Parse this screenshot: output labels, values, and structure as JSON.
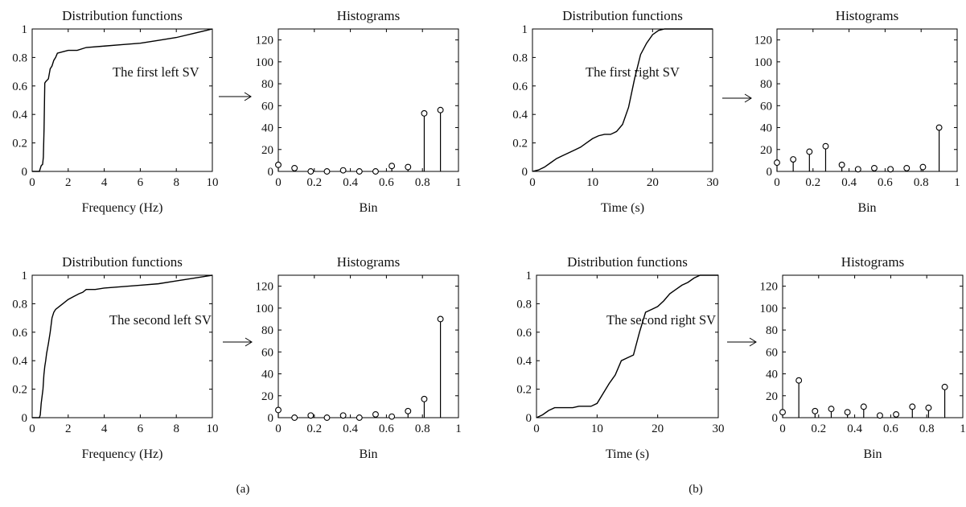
{
  "panel_labels": [
    "(a)",
    "(b)"
  ],
  "chart_data": [
    {
      "type": "line",
      "title": "Distribution functions",
      "xlabel": "Frequency (Hz)",
      "annotation": "The first left SV",
      "xlim": [
        0,
        10
      ],
      "ylim": [
        0,
        1
      ],
      "xticks": [
        "0",
        "2",
        "4",
        "6",
        "8",
        "10"
      ],
      "yticks": [
        "0",
        "0.2",
        "0.4",
        "0.6",
        "0.8",
        "1"
      ],
      "grid": false,
      "series": [
        {
          "x": [
            0,
            0.4,
            0.45,
            0.5,
            0.58,
            0.62,
            0.66,
            0.7,
            0.75,
            0.9,
            1.0,
            1.1,
            1.2,
            1.3,
            1.4,
            1.7,
            2.0,
            2.5,
            3.0,
            4.0,
            5.0,
            6.0,
            7.0,
            8.0,
            9.0,
            10.0
          ],
          "y": [
            0,
            0,
            0.02,
            0.04,
            0.05,
            0.1,
            0.3,
            0.62,
            0.63,
            0.65,
            0.72,
            0.74,
            0.78,
            0.8,
            0.83,
            0.84,
            0.85,
            0.85,
            0.87,
            0.88,
            0.89,
            0.9,
            0.92,
            0.94,
            0.97,
            1.0
          ]
        }
      ]
    },
    {
      "type": "stem",
      "title": "Histograms",
      "xlabel": "Bin",
      "xlim": [
        0,
        1
      ],
      "ylim": [
        0,
        130
      ],
      "xticks": [
        "0",
        "0.2",
        "0.4",
        "0.6",
        "0.8",
        "1"
      ],
      "yticks": [
        "0",
        "20",
        "40",
        "60",
        "80",
        "100",
        "120"
      ],
      "grid": false,
      "x": [
        0,
        0.09,
        0.18,
        0.27,
        0.36,
        0.45,
        0.54,
        0.63,
        0.72,
        0.81,
        0.9
      ],
      "values": [
        6,
        3,
        0,
        0,
        1,
        0,
        0,
        5,
        4,
        53,
        56
      ]
    },
    {
      "type": "line",
      "title": "Distribution functions",
      "xlabel": "Time (s)",
      "annotation": "The first right SV",
      "xlim": [
        0,
        30
      ],
      "ylim": [
        0,
        1
      ],
      "xticks": [
        "0",
        "10",
        "20",
        "30"
      ],
      "yticks": [
        "0",
        "0.2",
        "0.4",
        "0.6",
        "0.8",
        "1"
      ],
      "grid": false,
      "series": [
        {
          "x": [
            0,
            1,
            2,
            3,
            4,
            5,
            6,
            7,
            8,
            9,
            10,
            11,
            12,
            13,
            14,
            15,
            16,
            17,
            18,
            19,
            20,
            21,
            22,
            23,
            24,
            25,
            26,
            27,
            28,
            29,
            30
          ],
          "y": [
            0,
            0.01,
            0.03,
            0.06,
            0.09,
            0.11,
            0.13,
            0.15,
            0.17,
            0.2,
            0.23,
            0.25,
            0.26,
            0.26,
            0.28,
            0.33,
            0.45,
            0.65,
            0.82,
            0.9,
            0.96,
            0.99,
            1.0,
            1.0,
            1.0,
            1.0,
            1.0,
            1.0,
            1.0,
            1.0,
            1.0
          ]
        }
      ]
    },
    {
      "type": "stem",
      "title": "Histograms",
      "xlabel": "Bin",
      "xlim": [
        0,
        1
      ],
      "ylim": [
        0,
        130
      ],
      "xticks": [
        "0",
        "0.2",
        "0.4",
        "0.6",
        "0.8",
        "1"
      ],
      "yticks": [
        "0",
        "20",
        "40",
        "60",
        "80",
        "100",
        "120"
      ],
      "grid": false,
      "x": [
        0,
        0.09,
        0.18,
        0.27,
        0.36,
        0.45,
        0.54,
        0.63,
        0.72,
        0.81,
        0.9
      ],
      "values": [
        8,
        11,
        18,
        23,
        6,
        2,
        3,
        2,
        3,
        4,
        40
      ]
    },
    {
      "type": "line",
      "title": "Distribution functions",
      "xlabel": "Frequency (Hz)",
      "annotation": "The second left SV",
      "xlim": [
        0,
        10
      ],
      "ylim": [
        0,
        1
      ],
      "xticks": [
        "0",
        "2",
        "4",
        "6",
        "8",
        "10"
      ],
      "yticks": [
        "0",
        "0.2",
        "0.4",
        "0.6",
        "0.8",
        "1"
      ],
      "grid": false,
      "series": [
        {
          "x": [
            0,
            0.4,
            0.45,
            0.5,
            0.55,
            0.6,
            0.65,
            0.7,
            0.75,
            0.8,
            0.9,
            1.0,
            1.1,
            1.2,
            1.3,
            1.5,
            1.7,
            2.0,
            2.3,
            2.6,
            2.8,
            3.0,
            3.5,
            4.0,
            5.0,
            6.0,
            7.0,
            8.0,
            9.0,
            10.0
          ],
          "y": [
            0,
            0,
            0.02,
            0.1,
            0.15,
            0.2,
            0.3,
            0.36,
            0.4,
            0.45,
            0.52,
            0.6,
            0.7,
            0.74,
            0.76,
            0.78,
            0.8,
            0.83,
            0.85,
            0.87,
            0.88,
            0.9,
            0.9,
            0.91,
            0.92,
            0.93,
            0.94,
            0.96,
            0.98,
            1.0
          ]
        }
      ]
    },
    {
      "type": "stem",
      "title": "Histograms",
      "xlabel": "Bin",
      "xlim": [
        0,
        1
      ],
      "ylim": [
        0,
        130
      ],
      "xticks": [
        "0",
        "0.2",
        "0.4",
        "0.6",
        "0.8",
        "1"
      ],
      "yticks": [
        "0",
        "20",
        "40",
        "60",
        "80",
        "100",
        "120"
      ],
      "grid": false,
      "x": [
        0,
        0.09,
        0.18,
        0.27,
        0.36,
        0.45,
        0.54,
        0.63,
        0.72,
        0.81,
        0.9
      ],
      "values": [
        7,
        0,
        2,
        0,
        2,
        0,
        3,
        1,
        6,
        17,
        90
      ]
    },
    {
      "type": "line",
      "title": "Distribution functions",
      "xlabel": "Time (s)",
      "annotation": "The second right SV",
      "xlim": [
        0,
        30
      ],
      "ylim": [
        0,
        1
      ],
      "xticks": [
        "0",
        "10",
        "20",
        "30"
      ],
      "yticks": [
        "0",
        "0.2",
        "0.4",
        "0.6",
        "0.8",
        "1"
      ],
      "grid": false,
      "series": [
        {
          "x": [
            0,
            1,
            2,
            3,
            4,
            5,
            6,
            7,
            8,
            9,
            10,
            11,
            12,
            13,
            14,
            15,
            16,
            17,
            18,
            19,
            20,
            21,
            22,
            23,
            24,
            25,
            26,
            27,
            28,
            29,
            30
          ],
          "y": [
            0,
            0.02,
            0.05,
            0.07,
            0.07,
            0.07,
            0.07,
            0.08,
            0.08,
            0.08,
            0.1,
            0.17,
            0.24,
            0.3,
            0.4,
            0.42,
            0.44,
            0.6,
            0.74,
            0.76,
            0.78,
            0.82,
            0.87,
            0.9,
            0.93,
            0.95,
            0.98,
            1.0,
            1.0,
            1.0,
            1.0
          ]
        }
      ]
    },
    {
      "type": "stem",
      "title": "Histograms",
      "xlabel": "Bin",
      "xlim": [
        0,
        1
      ],
      "ylim": [
        0,
        130
      ],
      "xticks": [
        "0",
        "0.2",
        "0.4",
        "0.6",
        "0.8",
        "1"
      ],
      "yticks": [
        "0",
        "20",
        "40",
        "60",
        "80",
        "100",
        "120"
      ],
      "grid": false,
      "x": [
        0,
        0.09,
        0.18,
        0.27,
        0.36,
        0.45,
        0.54,
        0.63,
        0.72,
        0.81,
        0.9
      ],
      "values": [
        5,
        34,
        6,
        8,
        5,
        10,
        2,
        3,
        10,
        9,
        28
      ]
    }
  ]
}
